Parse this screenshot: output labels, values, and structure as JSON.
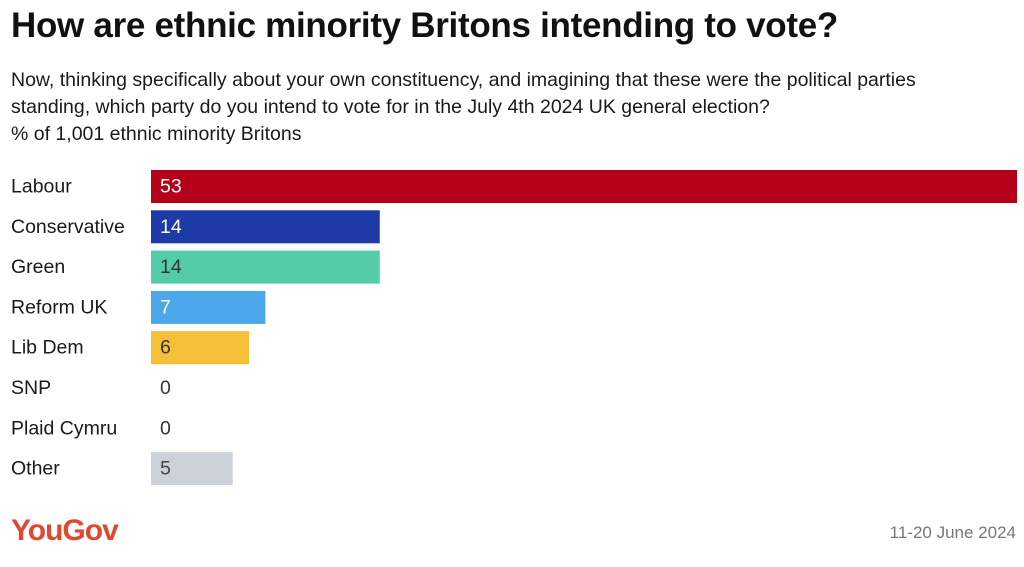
{
  "header": {
    "title": "How are ethnic minority Britons intending to vote?",
    "question_line1": "Now, thinking specifically about your own constituency, and imagining that these were the political parties",
    "question_line2": "standing, which party do you intend to vote for in the July 4th 2024 UK general election?",
    "base": "% of 1,001 ethnic minority Britons"
  },
  "footer": {
    "logo": "YouGov",
    "logo_color": "#e0482f",
    "date": "11-20 June 2024"
  },
  "chart_data": {
    "type": "bar",
    "orientation": "horizontal",
    "title": "How are ethnic minority Britons intending to vote?",
    "categories": [
      "Labour",
      "Conservative",
      "Green",
      "Reform UK",
      "Lib Dem",
      "SNP",
      "Plaid Cymru",
      "Other"
    ],
    "values": [
      53,
      14,
      14,
      7,
      6,
      0,
      0,
      5
    ],
    "colors": [
      "#b5001a",
      "#1d3aa6",
      "#55cca8",
      "#4ba7ea",
      "#f5bf38",
      "#cccccc",
      "#cccccc",
      "#cdd1da"
    ],
    "label_colors": [
      "#ffffff",
      "#ffffff",
      "#333333",
      "#ffffff",
      "#333333",
      "#333333",
      "#333333",
      "#444444"
    ],
    "xlim": [
      0,
      53
    ],
    "grid": false,
    "legend": "none"
  }
}
